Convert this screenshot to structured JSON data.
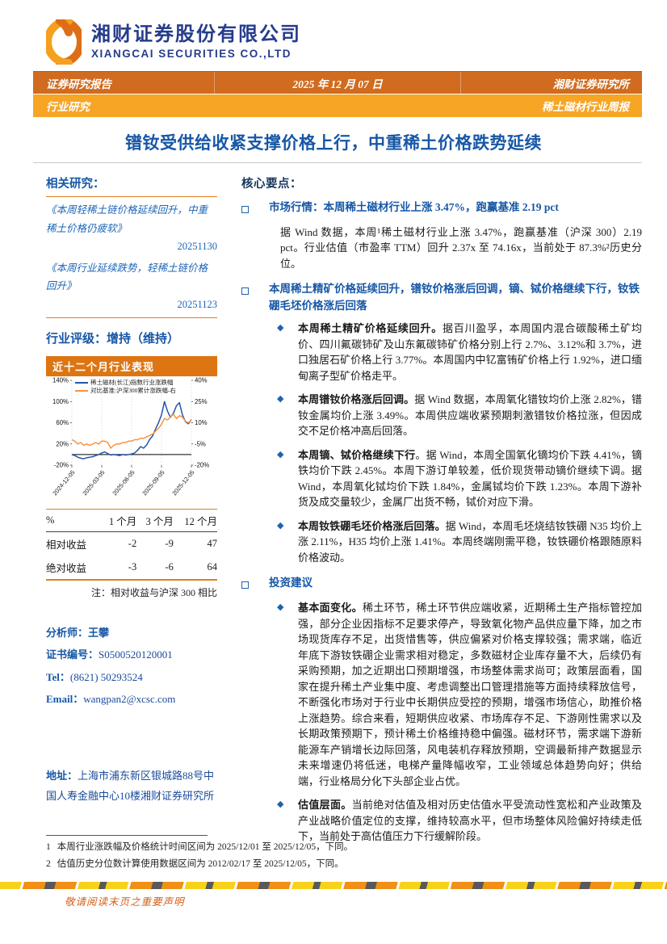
{
  "colors": {
    "bar_dark_orange": "#d06b1f",
    "bar_amber": "#f6a525",
    "title_blue": "#1757a6",
    "core_navy": "#16365c",
    "line_blue": "#2457a7",
    "line_orange": "#f79243",
    "rule_orange": "#e0811f",
    "disclaimer_orange": "#d4601a"
  },
  "header": {
    "company_cn": "湘财证券股份有限公司",
    "company_en": "XIANGCAI SECURITIES CO.,LTD",
    "bar1": {
      "left": "证券研究报告",
      "center": "2025 年 12 月 07 日",
      "right": "湘财证券研究所"
    },
    "bar2": {
      "left": "行业研究",
      "right": "稀土磁材行业周报"
    },
    "title": "镨钕受供给收紧支撑价格上行，中重稀土价格跌势延续"
  },
  "sidebar": {
    "related_heading": "相关研究：",
    "related": [
      {
        "title": "《本周轻稀土链价格延续回升，中重稀土价格仍疲软》",
        "date": "20251130"
      },
      {
        "title": "《本周行业延续跌势，轻稀土链价格回升》",
        "date": "20251123"
      }
    ],
    "rating": "行业评级：增持（维持）",
    "perf_table": {
      "headers": [
        "%",
        "1 个月",
        "3 个月",
        "12 个月"
      ],
      "rows": [
        {
          "label": "相对收益",
          "v1": "-2",
          "v2": "-9",
          "v3": "47"
        },
        {
          "label": "绝对收益",
          "v1": "-3",
          "v2": "-6",
          "v3": "64"
        }
      ],
      "note": "注：相对收益与沪深 300 相比"
    },
    "analyst": {
      "name_label": "分析师：",
      "name": "王攀",
      "cert_label": "证书编号：",
      "cert": "S0500520120001",
      "tel_label": "Tel：",
      "tel": "(8621) 50293524",
      "email_label": "Email：",
      "email": "wangpan2@xcsc.com"
    },
    "address_label": "地址：",
    "address": "上海市浦东新区银城路88号中国人寿金融中心10楼湘财证券研究所"
  },
  "chart_data": {
    "type": "line",
    "title": "近十二个月行业表现",
    "x_tick_labels": [
      "2024-12-05",
      "2025-03-05",
      "2025-06-05",
      "2025-09-05",
      "2025-12-05"
    ],
    "left_axis": {
      "min": -20,
      "max": 140,
      "ticks": [
        "140%",
        "100%",
        "60%",
        "20%",
        "-20%"
      ]
    },
    "right_axis": {
      "min": -20,
      "max": 40,
      "ticks": [
        "40%",
        "25%",
        "10%",
        "-5%",
        "-20%"
      ]
    },
    "grid": "vertical-dashed",
    "zero_line": true,
    "legend_position": "top-inside",
    "series": [
      {
        "name": "稀土磁材(长江)指数行业涨跌幅",
        "axis": "left",
        "color": "#2457a7",
        "values": [
          0,
          -2,
          -5,
          -7,
          -8,
          -6,
          -5,
          -4,
          -2,
          0,
          3,
          5,
          2,
          -1,
          0,
          -1,
          -2,
          0,
          -1,
          0,
          1,
          3,
          8,
          15,
          12,
          18,
          28,
          35,
          48,
          60,
          75,
          100,
          82,
          70,
          78,
          92,
          98,
          75,
          62,
          58,
          66
        ]
      },
      {
        "name": "对比基准:沪深300累计涨跌幅-右",
        "axis": "right",
        "color": "#f79243",
        "values": [
          -2,
          -3,
          -5,
          -4,
          -6,
          -5,
          -6,
          -5,
          -4,
          -5,
          -3,
          -3,
          -4,
          -8,
          -6,
          -5,
          -5,
          -4,
          -4,
          -3,
          -3,
          -2,
          -2,
          -1,
          -1,
          0,
          1,
          2,
          4,
          6,
          9,
          13,
          12,
          14,
          16,
          13,
          15,
          14,
          11,
          10,
          12
        ]
      }
    ]
  },
  "main": {
    "heading": "核心要点：",
    "s1": {
      "heading": "市场行情：本周稀土磁材行业上涨 3.47%，跑赢基准 2.19 pct",
      "paragraph": "据 Wind 数据，本周¹稀土磁材行业上涨 3.47%，跑赢基准（沪深 300）2.19 pct。行业估值（市盈率 TTM）回升 2.37x 至 74.16x，当前处于 87.3%²历史分位。"
    },
    "s2": {
      "heading": "本周稀土精矿价格延续回升，镨钕价格涨后回调，镝、铽价格继续下行，钕铁硼毛坯价格涨后回落",
      "b1_lead": "本周稀土精矿价格延续回升。",
      "b1_text": "据百川盈孚，本周国内混合碳酸稀土矿均价、四川氟碳铈矿及山东氟碳铈矿价格分别上行 2.7%、3.12%和 3.7%，进口独居石矿价格上行 3.77%。本周国内中钇富铕矿价格上行 1.92%，进口缅甸离子型矿价格走平。",
      "b2_lead": "本周镨钕价格涨后回调。",
      "b2_text": "据 Wind 数据，本周氧化镨钕均价上涨 2.82%，镨钕金属均价上涨 3.49%。本周供应端收紧预期刺激镨钕价格拉涨，但因成交不足价格冲高后回落。",
      "b3_lead": "本周镝、铽价格继续下行",
      "b3_text": "。据 Wind，本周全国氧化镝均价下跌 4.41%，镝铁均价下跌 2.45%。本周下游订单较差，低价现货带动镝价继续下调。据 Wind，本周氧化铽均价下跌 1.84%，金属铽均价下跌 1.23%。本周下游补货及成交量较少，金属厂出货不畅，铽价对应下滑。",
      "b4_lead": "本周钕铁硼毛坯价格涨后回落。",
      "b4_text": "据 Wind，本周毛坯烧结钕铁硼 N35 均价上涨 2.11%，H35 均价上涨 1.41%。本周终端刚需平稳，钕铁硼价格跟随原料价格波动。"
    },
    "s3": {
      "heading": "投资建议",
      "b1_lead": "基本面变化。",
      "b1_text": "稀土环节，稀土环节供应端收紧，近期稀土生产指标管控加强，部分企业因指标不足要求停产，导致氧化物产品供应量下降，加之市场现货库存不足，出货惜售等，供应偏紧对价格支撑较强；需求端，临近年底下游钕铁硼企业需求相对稳定，多数磁材企业库存量不大，后续仍有采购预期，加之近期出口预期增强，市场整体需求尚可；政策层面看，国家在提升稀土产业集中度、考虑调整出口管理措施等方面持续释放信号，不断强化市场对于行业中长期供应受控的预期，增强市场信心，助推价格上涨趋势。综合来看，短期供应收紧、市场库存不足、下游刚性需求以及长期政策预期下，预计稀土价格维持稳中偏强。磁材环节，需求端下游新能源车产销增长边际回落，风电装机存释放预期，空调最新排产数据显示未来增速仍将低迷，电梯产量降幅收窄，工业领域总体趋势向好；供给端，行业格局分化下头部企业占优。",
      "b2_lead": "估值层面。",
      "b2_text": "当前绝对估值及相对历史估值水平受流动性宽松和产业政策及产业战略价值定位的支撑，维持较高水平，但市场整体风险偏好持续走低下，当前处于高估值压力下行缓解阶段。"
    }
  },
  "footnotes": [
    {
      "num": "1",
      "text": "本周行业涨跌幅及价格统计时间区间为 2025/12/01 至 2025/12/05，下同。"
    },
    {
      "num": "2",
      "text": "估值历史分位数计算使用数据区间为 2012/02/17 至 2025/12/05，下同。"
    }
  ],
  "footer": {
    "disclaimer": "敬请阅读末页之重要声明"
  }
}
